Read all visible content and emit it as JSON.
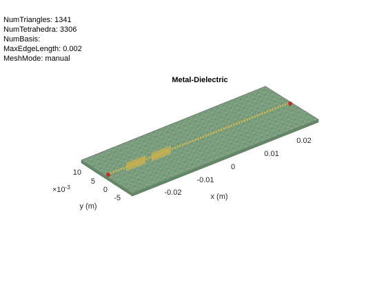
{
  "info": [
    "NumTriangles: 1341",
    "NumTetrahedra: 3306",
    "NumBasis:",
    "MaxEdgeLength: 0.002",
    "MeshMode: manual"
  ],
  "title": "Metal-Dielectric",
  "x_axis": {
    "label": "x (m)",
    "ticks": [
      "-0.02",
      "-0.01",
      "0",
      "0.01",
      "0.02"
    ]
  },
  "y_axis": {
    "label": "y (m)",
    "ticks": [
      "10",
      "5",
      "0",
      "-5"
    ],
    "exponent_base": "×10",
    "exponent_power": "-3"
  }
}
